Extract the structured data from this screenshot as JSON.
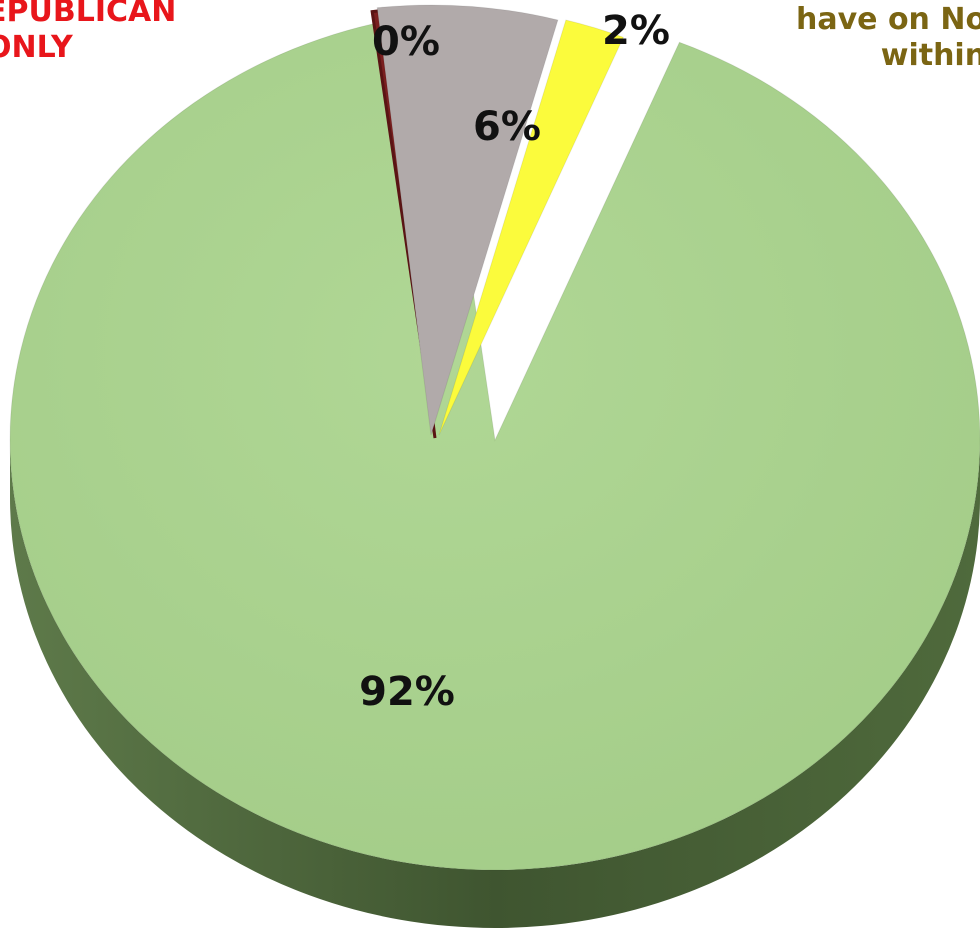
{
  "header_left": [
    "EPUBLICAN",
    "ONLY"
  ],
  "header_right": [
    "have on No",
    "within"
  ],
  "chart_data": {
    "type": "pie",
    "slices": [
      {
        "label": "92%",
        "value": 92,
        "color": "#a9d28e"
      },
      {
        "label": "0%",
        "value": 0.3,
        "color": "#7a1f1f"
      },
      {
        "label": "6%",
        "value": 6,
        "color": "#b1aaaa"
      },
      {
        "label": "2%",
        "value": 2,
        "color": "#fbfb3c"
      }
    ]
  }
}
